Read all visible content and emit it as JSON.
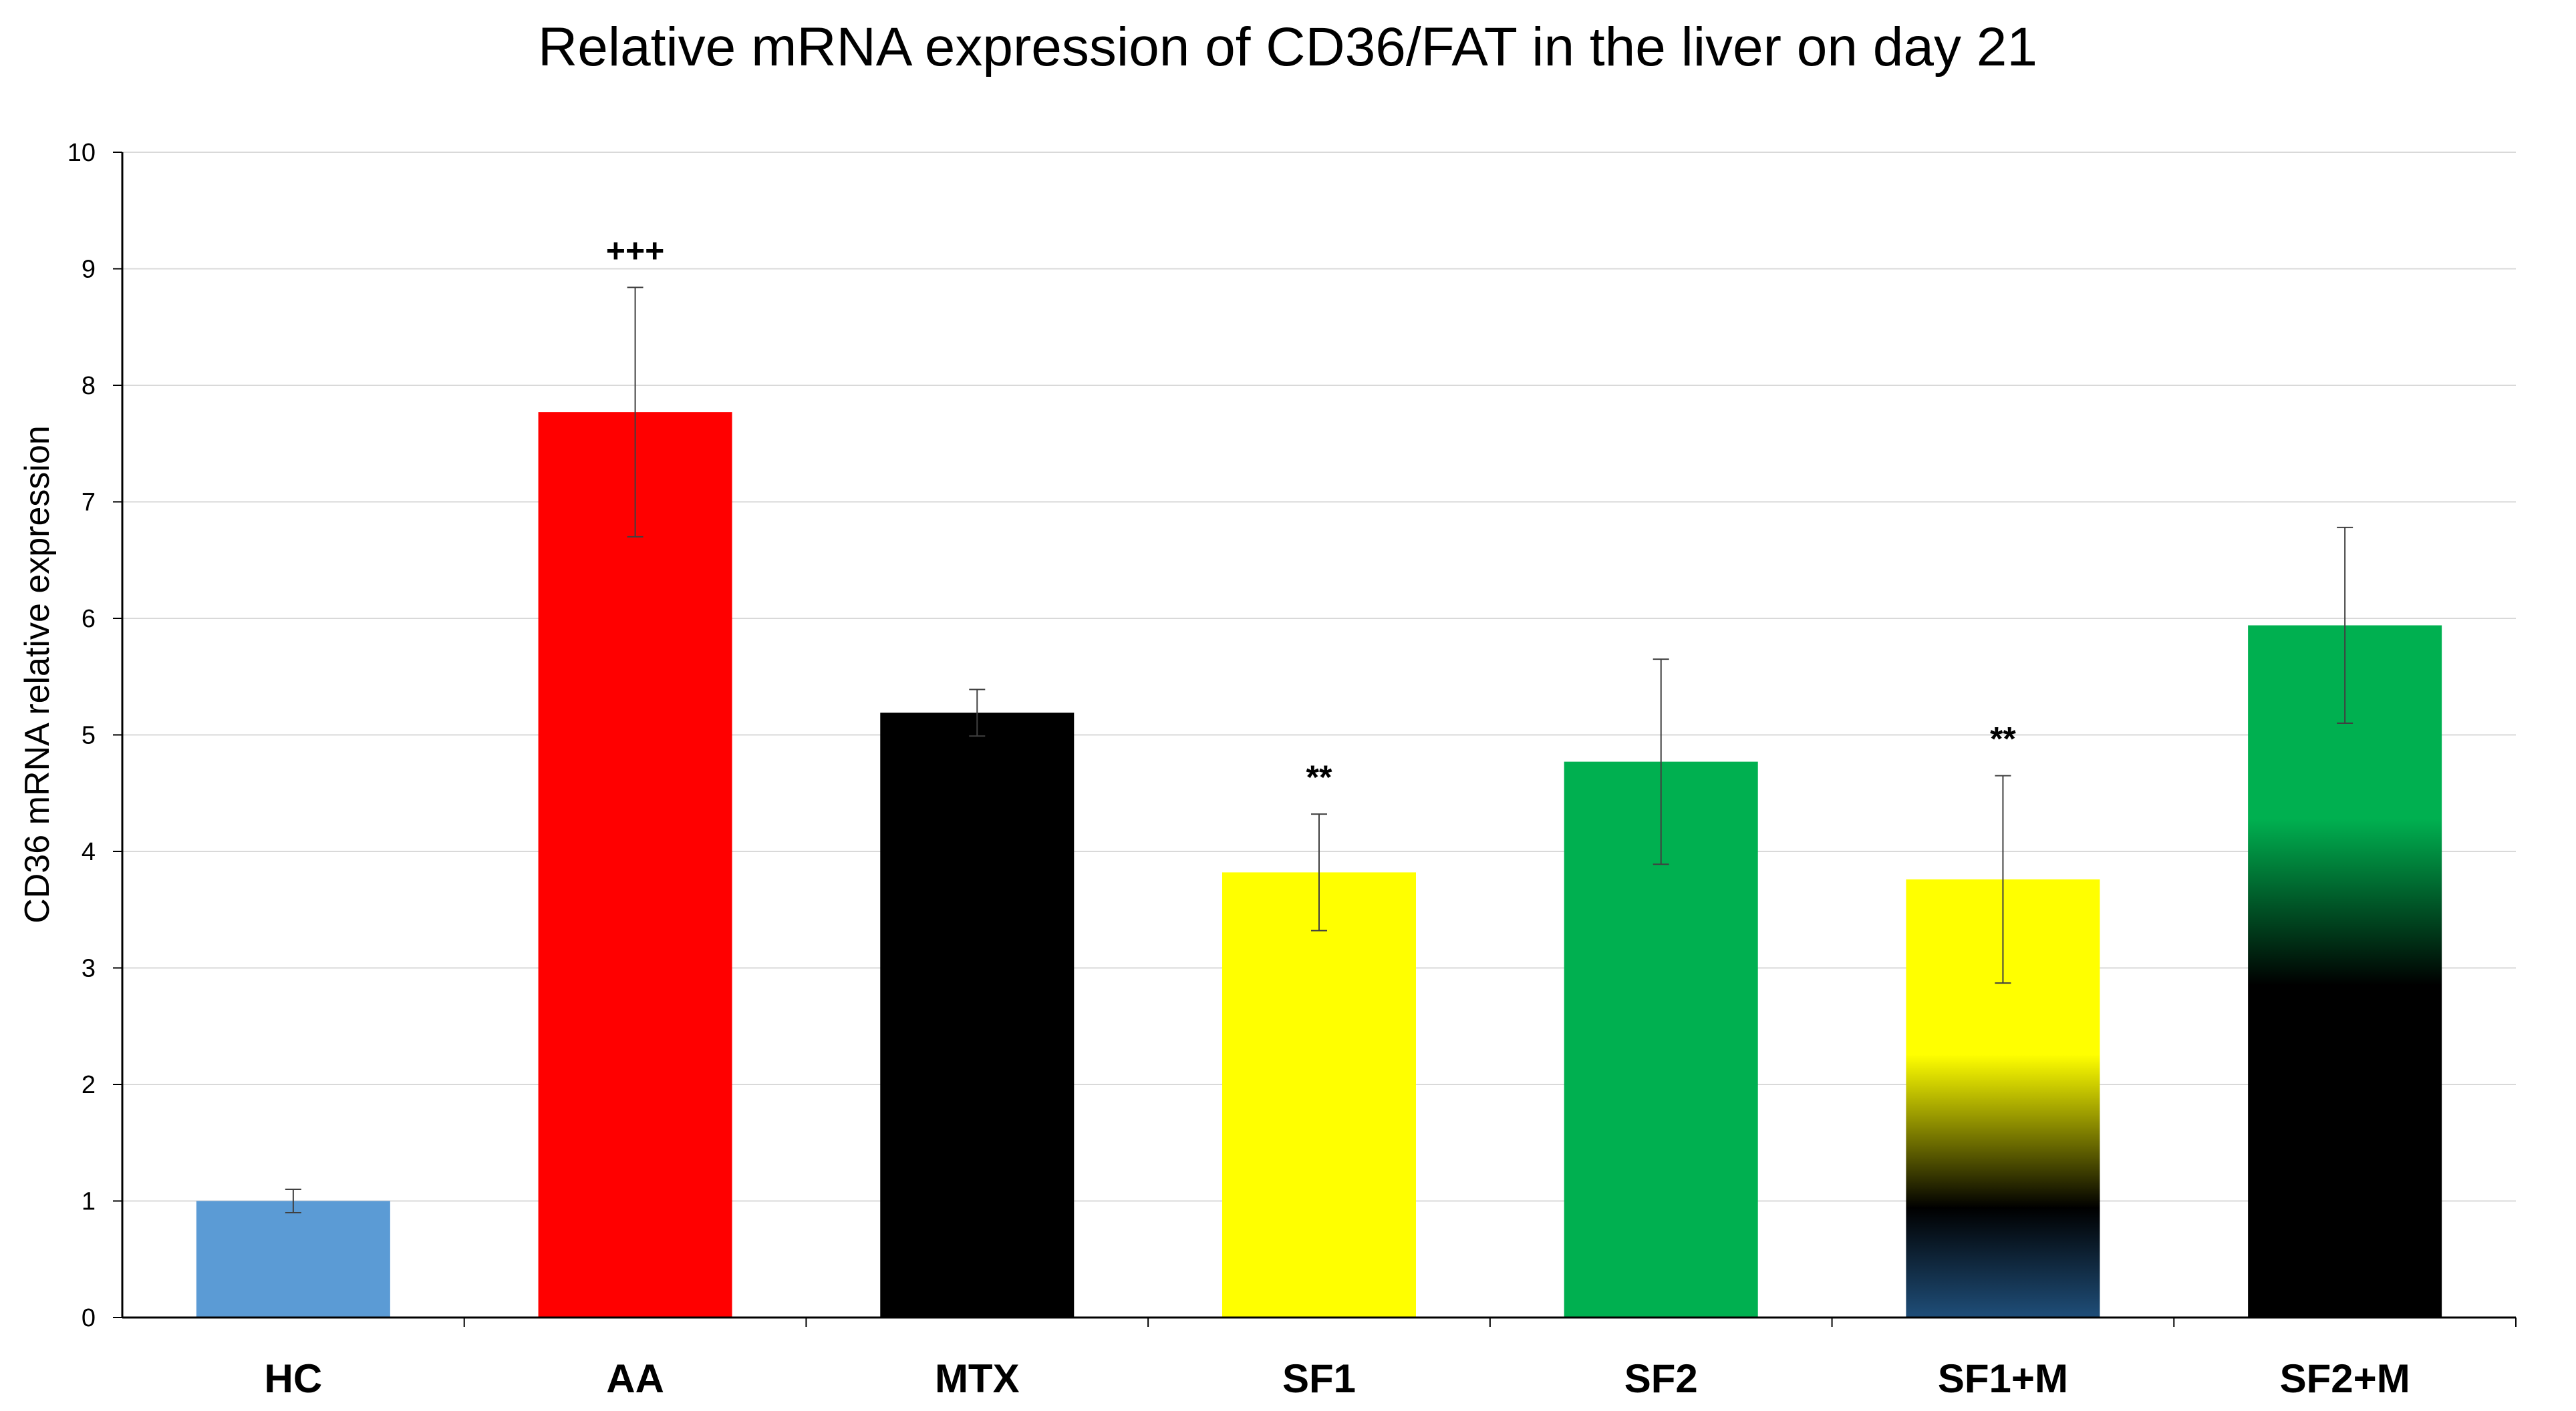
{
  "chart_data": {
    "type": "bar",
    "title": "Relative mRNA expression of CD36/FAT in the liver on day 21",
    "xlabel": "",
    "ylabel": "CD36 mRNA relative expression",
    "ylim": [
      0,
      10
    ],
    "yticks": [
      0,
      1,
      2,
      3,
      4,
      5,
      6,
      7,
      8,
      9,
      10
    ],
    "grid": true,
    "categories": [
      "HC",
      "AA",
      "MTX",
      "SF1",
      "SF2",
      "SF1+M",
      "SF2+M"
    ],
    "values": [
      1.0,
      7.77,
      5.19,
      3.82,
      4.77,
      3.76,
      5.94
    ],
    "errors": [
      0.1,
      1.07,
      0.2,
      0.5,
      0.88,
      0.89,
      0.84
    ],
    "annotations": [
      "",
      "+++",
      "",
      "**",
      "",
      "**",
      ""
    ],
    "bar_styles": [
      {
        "fill": "solid",
        "colors": [
          "#5b9bd5"
        ]
      },
      {
        "fill": "solid",
        "colors": [
          "#ff0000"
        ]
      },
      {
        "fill": "solid",
        "colors": [
          "#000000"
        ]
      },
      {
        "fill": "solid",
        "colors": [
          "#ffff00"
        ]
      },
      {
        "fill": "solid",
        "colors": [
          "#00b050"
        ]
      },
      {
        "fill": "gradient",
        "colors": [
          "#ffff00",
          "#000000",
          "#1f4e79"
        ]
      },
      {
        "fill": "gradient",
        "colors": [
          "#00b050",
          "#000000"
        ]
      }
    ]
  }
}
